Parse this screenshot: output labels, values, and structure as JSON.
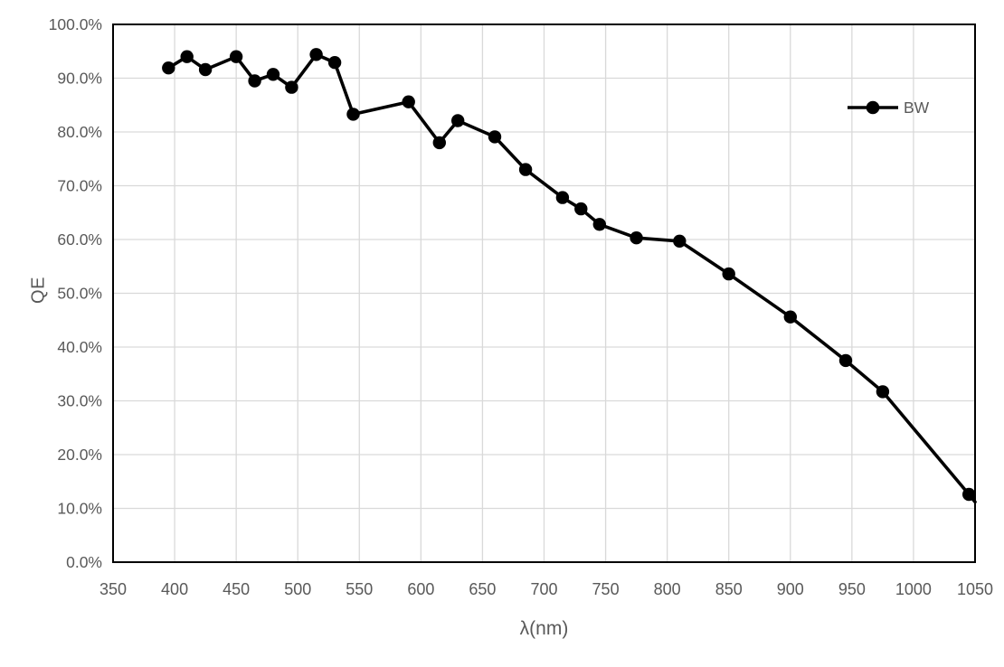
{
  "colors": {
    "axis_text": "#595959",
    "gridline": "#d9d9d9",
    "plot_border": "#000000",
    "series_line": "#000000",
    "background": "#ffffff"
  },
  "chart_data": {
    "type": "line",
    "title": "",
    "xlabel": "λ(nm)",
    "ylabel": "QE",
    "xlim": [
      350,
      1050
    ],
    "ylim": [
      0,
      100
    ],
    "grid": true,
    "legend_position": "inside-top-right",
    "x_ticks": [
      350,
      400,
      450,
      500,
      550,
      600,
      650,
      700,
      750,
      800,
      850,
      900,
      950,
      1000,
      1050
    ],
    "x_tick_labels": [
      "350",
      "400",
      "450",
      "500",
      "550",
      "600",
      "650",
      "700",
      "750",
      "800",
      "850",
      "900",
      "950",
      "1000",
      "1050"
    ],
    "y_ticks": [
      0,
      10,
      20,
      30,
      40,
      50,
      60,
      70,
      80,
      90,
      100
    ],
    "y_tick_labels": [
      "0.0%",
      "10.0%",
      "20.0%",
      "30.0%",
      "40.0%",
      "50.0%",
      "60.0%",
      "70.0%",
      "80.0%",
      "90.0%",
      "100.0%"
    ],
    "series": [
      {
        "name": "BW",
        "color": "#000000",
        "marker": "circle",
        "x": [
          395,
          410,
          425,
          450,
          465,
          480,
          495,
          515,
          530,
          545,
          590,
          615,
          630,
          660,
          685,
          715,
          730,
          745,
          775,
          810,
          850,
          900,
          945,
          975,
          1045
        ],
        "values": [
          91.9,
          94.0,
          91.6,
          94.0,
          89.5,
          90.7,
          88.3,
          94.4,
          92.9,
          83.3,
          85.6,
          78.0,
          82.1,
          79.1,
          73.0,
          67.8,
          65.7,
          62.8,
          60.3,
          59.7,
          53.6,
          45.6,
          37.5,
          31.7,
          12.6
        ],
        "line_exit_right": {
          "x": 1050,
          "value": 11.2
        }
      }
    ]
  }
}
